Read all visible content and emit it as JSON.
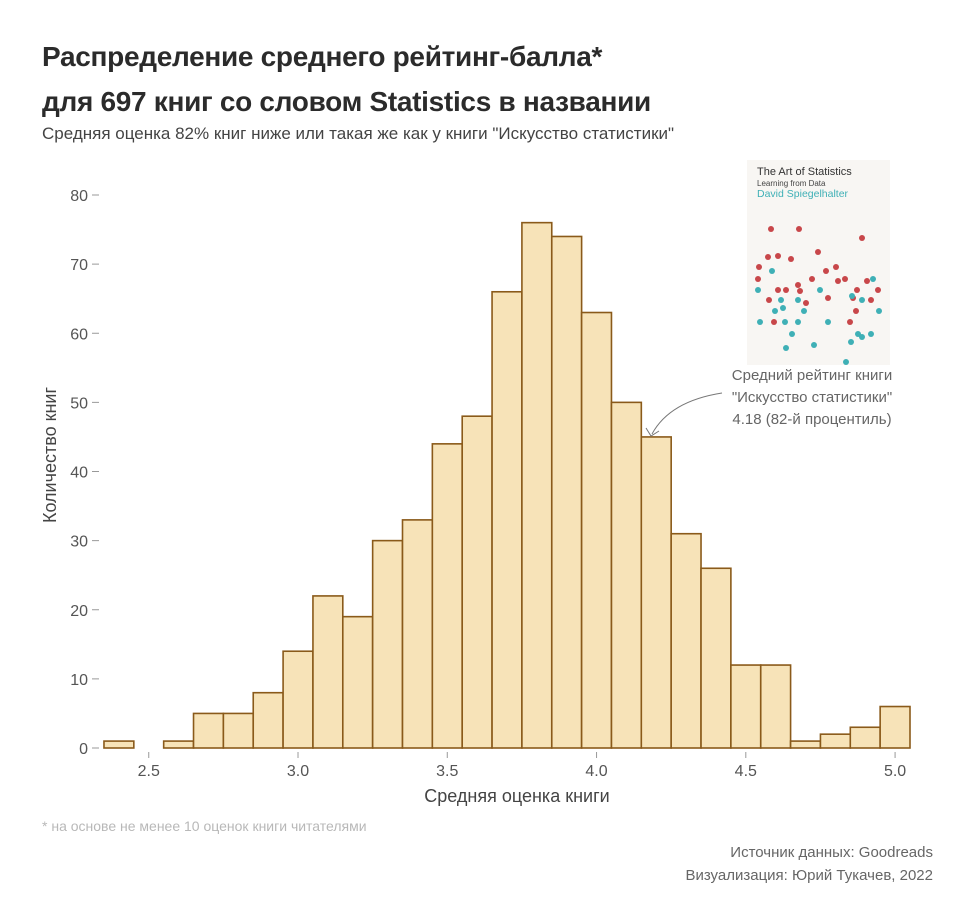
{
  "title_line1": "Распределение среднего рейтинг-балла*",
  "title_line2": "для 697 книг со словом Statistics в названии",
  "subtitle": "Средняя оценка 82% книг ниже или такая же как у книги \"Искусство статистики\"",
  "caption": "* на основе не менее 10 оценок книги читателями",
  "source_line1": "Источник данных: Goodreads",
  "source_line2": "Визуализация: Юрий Тукачев, 2022",
  "annotation": {
    "line1": "Средний рейтинг книги",
    "line2": "\"Искусство статистики\"",
    "line3": "4.18 (82-й процентиль)",
    "x_value": 4.18
  },
  "book_cover": {
    "title": "The Art of Statistics",
    "subtitle": "Learning from Data",
    "author": "David Spiegelhalter",
    "colors": {
      "background": "#f8f6f3",
      "red": "#c8474a",
      "teal": "#3fb0b6"
    }
  },
  "chart_data": {
    "type": "bar",
    "xlabel": "Средняя оценка книги",
    "ylabel": "Количество книг",
    "xlim": [
      2.33,
      5.05
    ],
    "ylim": [
      0,
      80
    ],
    "xticks": [
      2.5,
      3.0,
      3.5,
      4.0,
      4.5,
      5.0
    ],
    "xtick_labels": [
      "2.5",
      "3.0",
      "3.5",
      "4.0",
      "4.5",
      "5.0"
    ],
    "yticks": [
      0,
      10,
      20,
      30,
      40,
      50,
      60,
      70,
      80
    ],
    "bins_start": 2.35,
    "bin_width": 0.1,
    "values": [
      1,
      0,
      1,
      5,
      5,
      8,
      14,
      22,
      19,
      30,
      33,
      44,
      48,
      66,
      76,
      74,
      63,
      50,
      45,
      31,
      26,
      12,
      12,
      1,
      2,
      3,
      6
    ],
    "colors": {
      "fill": "#f7e3b8",
      "stroke": "#8a5a1a",
      "tick": "#999999"
    },
    "grid": false
  }
}
